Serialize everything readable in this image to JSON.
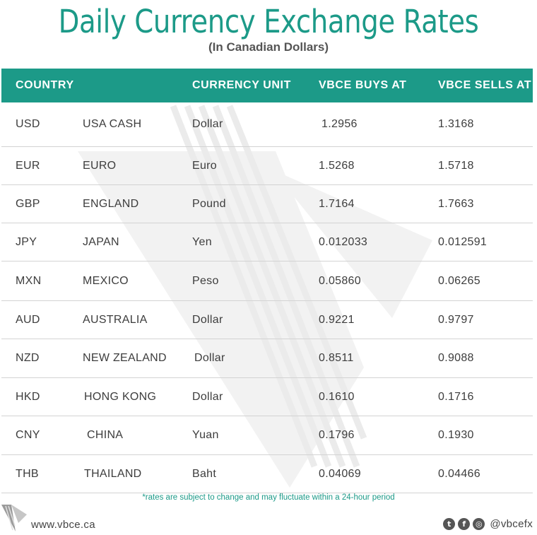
{
  "header": {
    "title": "Daily Currency Exchange Rates",
    "subtitle": "(In Canadian Dollars)"
  },
  "table": {
    "columns": {
      "country": "COUNTRY",
      "unit": "CURRENCY UNIT",
      "buys": "VBCE BUYS AT",
      "sells": "VBCE SELLS AT"
    },
    "rows": [
      {
        "code": "USD",
        "country": "USA CASH",
        "unit": "Dollar",
        "buy": "1.2956",
        "sell": "1.3168"
      },
      {
        "code": "EUR",
        "country": "EURO",
        "unit": "Euro",
        "buy": "1.5268",
        "sell": "1.5718"
      },
      {
        "code": "GBP",
        "country": "ENGLAND",
        "unit": "Pound",
        "buy": "1.7164",
        "sell": "1.7663"
      },
      {
        "code": "JPY",
        "country": "JAPAN",
        "unit": "Yen",
        "buy": "0.012033",
        "sell": "0.012591"
      },
      {
        "code": "MXN",
        "country": "MEXICO",
        "unit": "Peso",
        "buy": "0.05860",
        "sell": "0.06265"
      },
      {
        "code": "AUD",
        "country": "AUSTRALIA",
        "unit": "Dollar",
        "buy": "0.9221",
        "sell": "0.9797"
      },
      {
        "code": "NZD",
        "country": "NEW ZEALAND",
        "unit": "Dollar",
        "buy": "0.8511",
        "sell": "0.9088"
      },
      {
        "code": "HKD",
        "country": "HONG KONG",
        "unit": "Dollar",
        "buy": "0.1610",
        "sell": "0.1716"
      },
      {
        "code": "CNY",
        "country": "CHINA",
        "unit": "Yuan",
        "buy": "0.1796",
        "sell": "0.1930"
      },
      {
        "code": "THB",
        "country": "THAILAND",
        "unit": "Baht",
        "buy": "0.04069",
        "sell": "0.04466"
      }
    ]
  },
  "footnote": "*rates are subject to change and may fluctuate within a 24-hour period",
  "footer": {
    "website": "www.vbce.ca",
    "handle": "@vbcefx",
    "social_icons": [
      "twitter-icon",
      "facebook-icon",
      "instagram-icon"
    ]
  },
  "colors": {
    "brand": "#1c9a88",
    "text": "#3d3d3d",
    "row_divider": "#d3d3d3"
  }
}
